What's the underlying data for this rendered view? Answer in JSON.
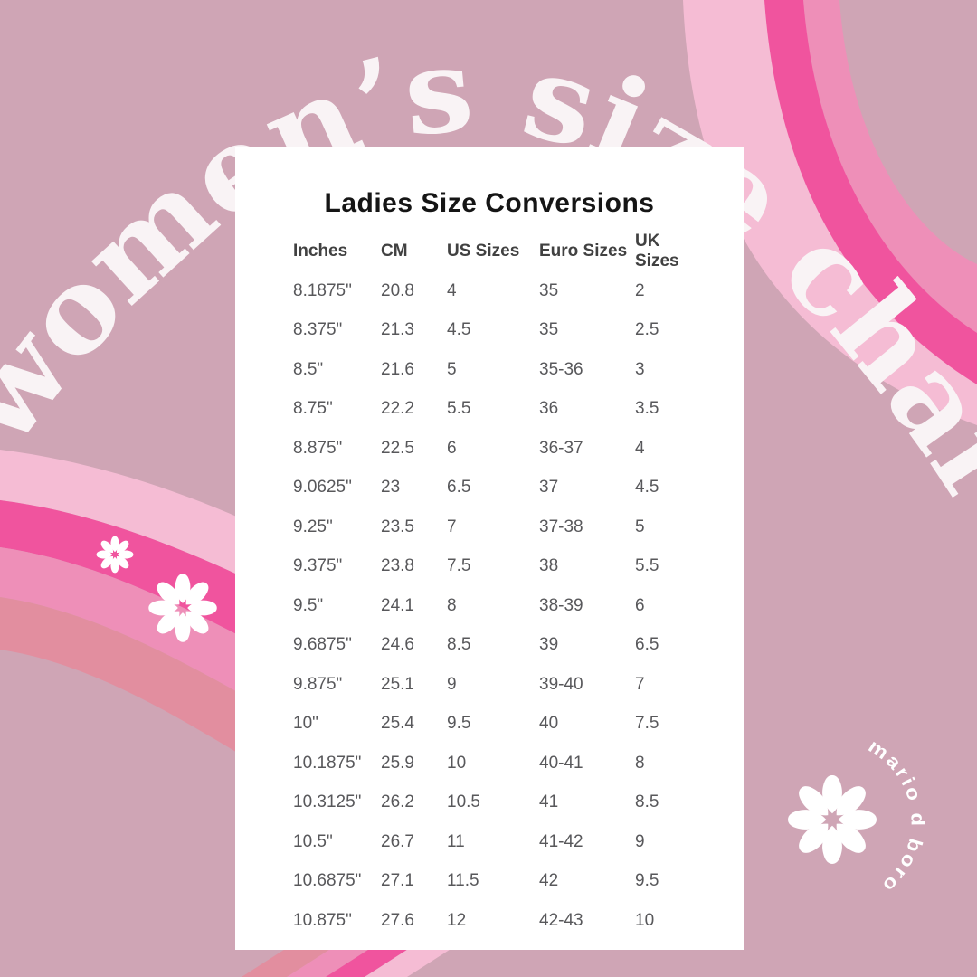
{
  "header": {
    "arched_title": "women’s size chart"
  },
  "brand": {
    "name": "mario d boro"
  },
  "card": {
    "title": "Ladies Size Conversions"
  },
  "table": {
    "columns": [
      "Inches",
      "CM",
      "US Sizes",
      "Euro Sizes",
      "UK Sizes"
    ],
    "rows": [
      [
        "8.1875\"",
        "20.8",
        "4",
        "35",
        "2"
      ],
      [
        "8.375\"",
        "21.3",
        "4.5",
        "35",
        "2.5"
      ],
      [
        "8.5\"",
        "21.6",
        "5",
        "35-36",
        "3"
      ],
      [
        "8.75\"",
        "22.2",
        "5.5",
        "36",
        "3.5"
      ],
      [
        "8.875\"",
        "22.5",
        "6",
        "36-37",
        "4"
      ],
      [
        "9.0625\"",
        "23",
        "6.5",
        "37",
        "4.5"
      ],
      [
        "9.25\"",
        "23.5",
        "7",
        "37-38",
        "5"
      ],
      [
        "9.375\"",
        "23.8",
        "7.5",
        "38",
        "5.5"
      ],
      [
        "9.5\"",
        "24.1",
        "8",
        "38-39",
        "6"
      ],
      [
        "9.6875\"",
        "24.6",
        "8.5",
        "39",
        "6.5"
      ],
      [
        "9.875\"",
        "25.1",
        "9",
        "39-40",
        "7"
      ],
      [
        "10\"",
        "25.4",
        "9.5",
        "40",
        "7.5"
      ],
      [
        "10.1875\"",
        "25.9",
        "10",
        "40-41",
        "8"
      ],
      [
        "10.3125\"",
        "26.2",
        "10.5",
        "41",
        "8.5"
      ],
      [
        "10.5\"",
        "26.7",
        "11",
        "41-42",
        "9"
      ],
      [
        "10.6875\"",
        "27.1",
        "11.5",
        "42",
        "9.5"
      ],
      [
        "10.875\"",
        "27.6",
        "12",
        "42-43",
        "10"
      ]
    ]
  },
  "decor": {
    "flower_icon": "8-petal-flower",
    "colors": {
      "background": "#cfa5b5",
      "light_pink": "#f5bcd4",
      "hot_pink": "#f0549e",
      "medium_pink": "#ee8fb8",
      "rose_pink": "#e28e9f",
      "card_white": "#ffffff",
      "title_cream": "#f9f3f5",
      "header_text": "#414141",
      "cell_text": "#58585b",
      "title_black": "#151515"
    }
  }
}
